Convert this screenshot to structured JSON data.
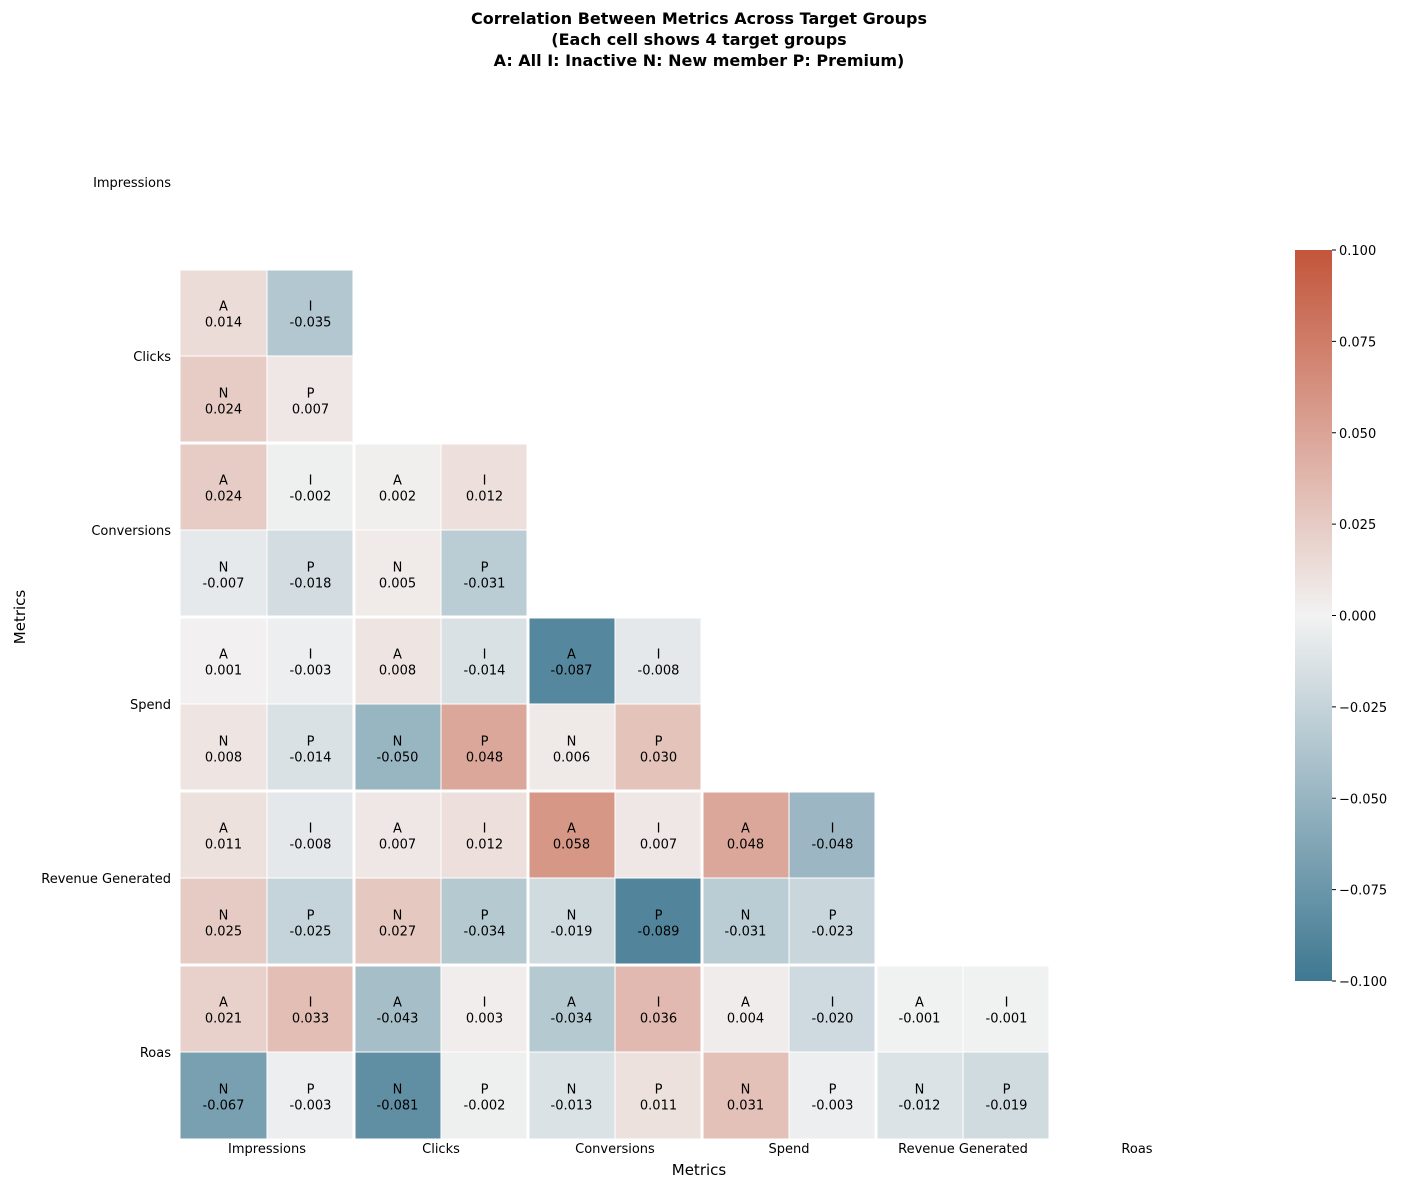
{
  "chart_data": {
    "type": "heatmap",
    "title": [
      "Correlation Between Metrics Across Target Groups",
      "(Each cell shows 4 target groups",
      "A: All I: Inactive N: New member P: Premium)"
    ],
    "xlabel": "Metrics",
    "ylabel": "Metrics",
    "metrics": [
      "Impressions",
      "Clicks",
      "Conversions",
      "Spend",
      "Revenue Generated",
      "Roas"
    ],
    "group_codes": [
      "A",
      "I",
      "N",
      "P"
    ],
    "layout": "lower-triangle, each cell split into 2x2 sub-cells (A top-left, I top-right, N bottom-left, P bottom-right)",
    "cells": [
      {
        "row": "Clicks",
        "col": "Impressions",
        "A": 0.014,
        "I": -0.035,
        "N": 0.024,
        "P": 0.007
      },
      {
        "row": "Conversions",
        "col": "Impressions",
        "A": 0.024,
        "I": -0.002,
        "N": -0.007,
        "P": -0.018
      },
      {
        "row": "Conversions",
        "col": "Clicks",
        "A": 0.002,
        "I": 0.012,
        "N": 0.005,
        "P": -0.031
      },
      {
        "row": "Spend",
        "col": "Impressions",
        "A": 0.001,
        "I": -0.003,
        "N": 0.008,
        "P": -0.014
      },
      {
        "row": "Spend",
        "col": "Clicks",
        "A": 0.008,
        "I": -0.014,
        "N": -0.05,
        "P": 0.048
      },
      {
        "row": "Spend",
        "col": "Conversions",
        "A": -0.087,
        "I": -0.008,
        "N": 0.006,
        "P": 0.03
      },
      {
        "row": "Revenue Generated",
        "col": "Impressions",
        "A": 0.011,
        "I": -0.008,
        "N": 0.025,
        "P": -0.025
      },
      {
        "row": "Revenue Generated",
        "col": "Clicks",
        "A": 0.007,
        "I": 0.012,
        "N": 0.027,
        "P": -0.034
      },
      {
        "row": "Revenue Generated",
        "col": "Conversions",
        "A": 0.058,
        "I": 0.007,
        "N": -0.019,
        "P": -0.089
      },
      {
        "row": "Revenue Generated",
        "col": "Spend",
        "A": 0.048,
        "I": -0.048,
        "N": -0.031,
        "P": -0.023
      },
      {
        "row": "Roas",
        "col": "Impressions",
        "A": 0.021,
        "I": 0.033,
        "N": -0.067,
        "P": -0.003
      },
      {
        "row": "Roas",
        "col": "Clicks",
        "A": -0.043,
        "I": 0.003,
        "N": -0.081,
        "P": -0.002
      },
      {
        "row": "Roas",
        "col": "Conversions",
        "A": -0.034,
        "I": 0.036,
        "N": -0.013,
        "P": 0.011
      },
      {
        "row": "Roas",
        "col": "Spend",
        "A": 0.004,
        "I": -0.02,
        "N": 0.031,
        "P": -0.003
      },
      {
        "row": "Roas",
        "col": "Revenue Generated",
        "A": -0.001,
        "I": -0.001,
        "N": -0.012,
        "P": -0.019
      }
    ],
    "colorbar": {
      "range": [
        -0.1,
        0.1
      ],
      "ticks": [
        0.1,
        0.075,
        0.05,
        0.025,
        0.0,
        -0.025,
        -0.05,
        -0.075,
        -0.1
      ],
      "tick_labels": [
        "0.100",
        "0.075",
        "0.050",
        "0.025",
        "0.000",
        "−0.025",
        "−0.050",
        "−0.075",
        "−0.100"
      ],
      "colors": {
        "negative": "#3e7891",
        "neutral": "#f2f2f2",
        "positive": "#c3553a"
      }
    }
  }
}
